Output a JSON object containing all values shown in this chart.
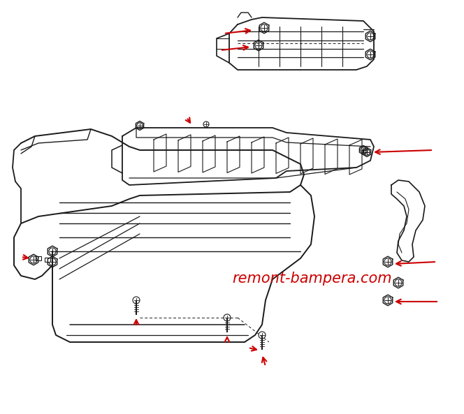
{
  "background_color": "#ffffff",
  "watermark_text": "remont-bampera.com",
  "watermark_color": "#cc0000",
  "watermark_fontsize": 15,
  "line_color": "#1a1a1a",
  "arrow_color": "#cc0000",
  "figsize": [
    6.64,
    5.93
  ],
  "dpi": 100
}
